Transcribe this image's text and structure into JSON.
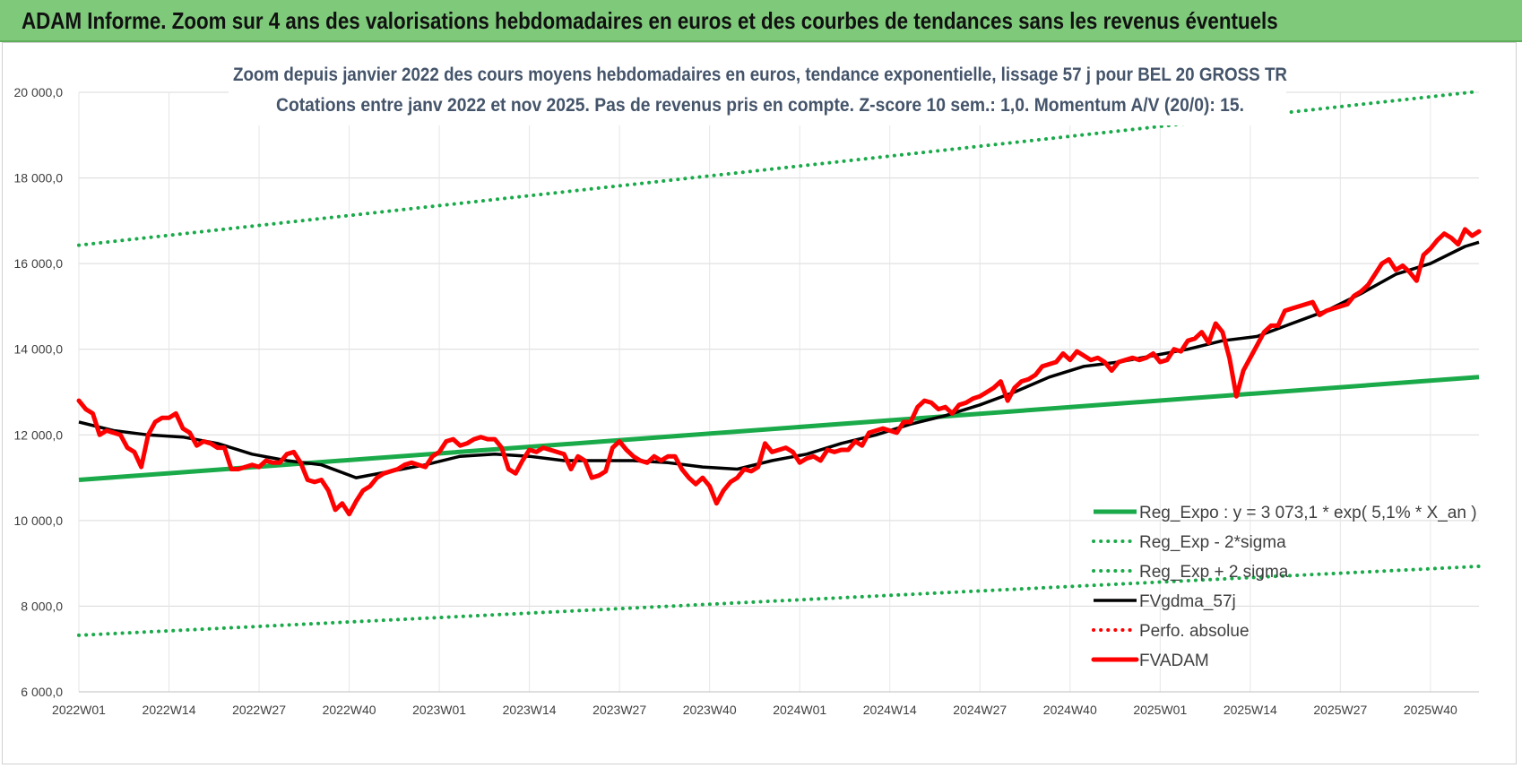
{
  "banner": {
    "title": "ADAM Informe. Zoom sur 4 ans des valorisations hebdomadaires en euros et des courbes de tendances sans les revenus éventuels"
  },
  "chart_data": {
    "type": "line",
    "title": "Zoom depuis janvier 2022 des cours moyens hebdomadaires en euros, tendance exponentielle, lissage 57 j pour BEL 20 GROSS TR",
    "subtitle": "Cotations entre janv 2022 et nov 2025. Pas de revenus pris en compte. Z-score 10 sem.: 1,0. Momentum A/V (20/0): 15.",
    "xlabel": "",
    "ylabel": "",
    "ylim": [
      6000,
      20000
    ],
    "yticks": [
      6000,
      8000,
      10000,
      12000,
      14000,
      16000,
      18000,
      20000
    ],
    "ytick_labels": [
      "6 000,0",
      "8 000,0",
      "10 000,0",
      "12 000,0",
      "14 000,0",
      "16 000,0",
      "18 000,0",
      "20 000,0"
    ],
    "x_range": [
      0,
      202
    ],
    "xticks": [
      0,
      13,
      26,
      39,
      52,
      65,
      78,
      91,
      104,
      117,
      130,
      143,
      156,
      169,
      182,
      195
    ],
    "xtick_labels": [
      "2022W01",
      "2022W14",
      "2022W27",
      "2022W40",
      "2023W01",
      "2023W14",
      "2023W27",
      "2023W40",
      "2024W01",
      "2024W14",
      "2024W27",
      "2024W40",
      "2025W01",
      "2025W14",
      "2025W27",
      "2025W40"
    ],
    "grid": true,
    "legend_position": "bottom-right",
    "colors": {
      "green": "#1aaa4a",
      "black": "#000000",
      "red": "#ff0000"
    },
    "series": [
      {
        "name": "Reg_Expo : y = 3 073,1 * exp( 5,1% *  X_an )",
        "style": "solid",
        "color": "#1aaa4a",
        "x": [
          0,
          202
        ],
        "y": [
          10950,
          13350
        ]
      },
      {
        "name": "Reg_Exp - 2*sigma",
        "style": "dotted",
        "color": "#1aaa4a",
        "x": [
          0,
          202
        ],
        "y": [
          7320,
          8930
        ]
      },
      {
        "name": "Reg_Exp + 2 sigma",
        "style": "dotted",
        "color": "#1aaa4a",
        "x": [
          0,
          202
        ],
        "y": [
          16430,
          20020
        ]
      },
      {
        "name": "FVgdma_57j",
        "style": "solid",
        "color": "#000000",
        "x": [
          0,
          5,
          10,
          15,
          20,
          25,
          30,
          35,
          40,
          45,
          50,
          55,
          60,
          65,
          70,
          75,
          80,
          85,
          90,
          95,
          100,
          105,
          110,
          115,
          120,
          125,
          130,
          135,
          140,
          145,
          150,
          155,
          160,
          165,
          170,
          175,
          180,
          185,
          190,
          195,
          200,
          202
        ],
        "y": [
          12300,
          12100,
          12000,
          11950,
          11800,
          11550,
          11400,
          11300,
          11000,
          11150,
          11300,
          11500,
          11550,
          11500,
          11400,
          11400,
          11400,
          11350,
          11250,
          11200,
          11400,
          11550,
          11800,
          12000,
          12250,
          12450,
          12700,
          13000,
          13350,
          13600,
          13700,
          13850,
          14000,
          14200,
          14300,
          14600,
          14900,
          15300,
          15750,
          16000,
          16400,
          16500
        ]
      },
      {
        "name": "Perfo. absolue",
        "style": "dotted",
        "color": "#ff0000",
        "x": [],
        "y": []
      },
      {
        "name": "FVADAM",
        "style": "solid",
        "color": "#ff0000",
        "x": [
          0,
          1,
          2,
          3,
          4,
          5,
          6,
          7,
          8,
          9,
          10,
          11,
          12,
          13,
          14,
          15,
          16,
          17,
          18,
          19,
          20,
          21,
          22,
          23,
          24,
          25,
          26,
          27,
          28,
          29,
          30,
          31,
          32,
          33,
          34,
          35,
          36,
          37,
          38,
          39,
          40,
          41,
          42,
          43,
          44,
          45,
          46,
          47,
          48,
          49,
          50,
          51,
          52,
          53,
          54,
          55,
          56,
          57,
          58,
          59,
          60,
          61,
          62,
          63,
          64,
          65,
          66,
          67,
          68,
          69,
          70,
          71,
          72,
          73,
          74,
          75,
          76,
          77,
          78,
          79,
          80,
          81,
          82,
          83,
          84,
          85,
          86,
          87,
          88,
          89,
          90,
          91,
          92,
          93,
          94,
          95,
          96,
          97,
          98,
          99,
          100,
          101,
          102,
          103,
          104,
          105,
          106,
          107,
          108,
          109,
          110,
          111,
          112,
          113,
          114,
          115,
          116,
          117,
          118,
          119,
          120,
          121,
          122,
          123,
          124,
          125,
          126,
          127,
          128,
          129,
          130,
          131,
          132,
          133,
          134,
          135,
          136,
          137,
          138,
          139,
          140,
          141,
          142,
          143,
          144,
          145,
          146,
          147,
          148,
          149,
          150,
          151,
          152,
          153,
          154,
          155,
          156,
          157,
          158,
          159,
          160,
          161,
          162,
          163,
          164,
          165,
          166,
          167,
          168,
          169,
          170,
          171,
          172,
          173,
          174,
          175,
          176,
          177,
          178,
          179,
          180,
          181,
          182,
          183,
          184,
          185,
          186,
          187,
          188,
          189,
          190,
          191,
          192,
          193,
          194,
          195,
          196,
          197,
          198,
          199,
          200,
          201,
          202
        ],
        "y": [
          12800,
          12600,
          12500,
          12000,
          12100,
          12050,
          12000,
          11700,
          11600,
          11250,
          12000,
          12300,
          12400,
          12400,
          12500,
          12150,
          12050,
          11750,
          11850,
          11800,
          11700,
          11700,
          11200,
          11200,
          11250,
          11300,
          11250,
          11400,
          11350,
          11350,
          11550,
          11600,
          11350,
          10950,
          10900,
          10950,
          10700,
          10250,
          10400,
          10150,
          10450,
          10700,
          10800,
          11000,
          11100,
          11150,
          11200,
          11300,
          11350,
          11300,
          11250,
          11500,
          11600,
          11850,
          11900,
          11750,
          11800,
          11900,
          11950,
          11900,
          11900,
          11700,
          11200,
          11100,
          11400,
          11650,
          11600,
          11700,
          11650,
          11600,
          11550,
          11200,
          11500,
          11400,
          11000,
          11050,
          11150,
          11700,
          11850,
          11650,
          11500,
          11400,
          11350,
          11500,
          11400,
          11500,
          11500,
          11200,
          11000,
          10850,
          11000,
          10800,
          10400,
          10700,
          10900,
          11000,
          11200,
          11150,
          11250,
          11800,
          11600,
          11650,
          11700,
          11600,
          11350,
          11450,
          11500,
          11400,
          11650,
          11600,
          11650,
          11650,
          11850,
          11750,
          12050,
          12100,
          12150,
          12100,
          12050,
          12300,
          12300,
          12650,
          12800,
          12750,
          12600,
          12650,
          12500,
          12700,
          12750,
          12850,
          12900,
          13000,
          13100,
          13250,
          12800,
          13100,
          13250,
          13300,
          13400,
          13600,
          13650,
          13700,
          13900,
          13750,
          13950,
          13850,
          13750,
          13800,
          13700,
          13500,
          13700,
          13750,
          13800,
          13750,
          13800,
          13900,
          13700,
          13750,
          14000,
          13950,
          14200,
          14250,
          14400,
          14150,
          14600,
          14400,
          13800,
          12900,
          13500,
          13800,
          14100,
          14400,
          14550,
          14550,
          14900,
          14950,
          15000,
          15050,
          15100,
          14800,
          14900,
          14950,
          15000,
          15050,
          15250,
          15350,
          15500,
          15750,
          16000,
          16100,
          15850,
          15950,
          15800,
          15600,
          16200,
          16350,
          16550,
          16700,
          16600,
          16450,
          16800,
          16650,
          16750
        ]
      }
    ]
  }
}
